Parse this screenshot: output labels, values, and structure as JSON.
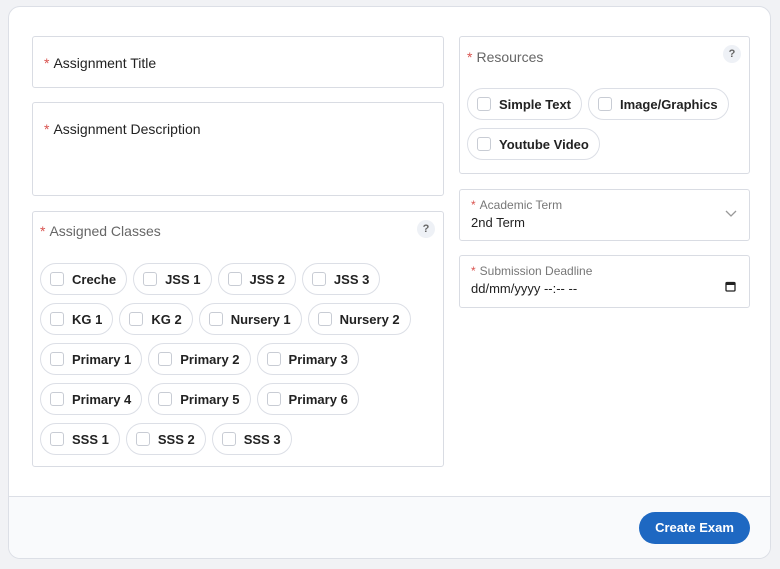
{
  "form": {
    "title_label": "Assignment Title",
    "description_label": "Assignment Description",
    "classes_label": "Assigned Classes",
    "classes": [
      "Creche",
      "JSS 1",
      "JSS 2",
      "JSS 3",
      "KG 1",
      "KG 2",
      "Nursery 1",
      "Nursery 2",
      "Primary 1",
      "Primary 2",
      "Primary 3",
      "Primary 4",
      "Primary 5",
      "Primary 6",
      "SSS 1",
      "SSS 2",
      "SSS 3"
    ],
    "resources_label": "Resources",
    "resources": [
      "Simple Text",
      "Image/Graphics",
      "Youtube Video"
    ],
    "term_label": "Academic Term",
    "term_value": "2nd Term",
    "deadline_label": "Submission Deadline",
    "deadline_value": "dd/mm/yyyy --:-- --",
    "help": "?",
    "required_mark": "*"
  },
  "footer": {
    "create_label": "Create Exam"
  },
  "colors": {
    "accent": "#1e68c2",
    "required": "#d9534f"
  }
}
